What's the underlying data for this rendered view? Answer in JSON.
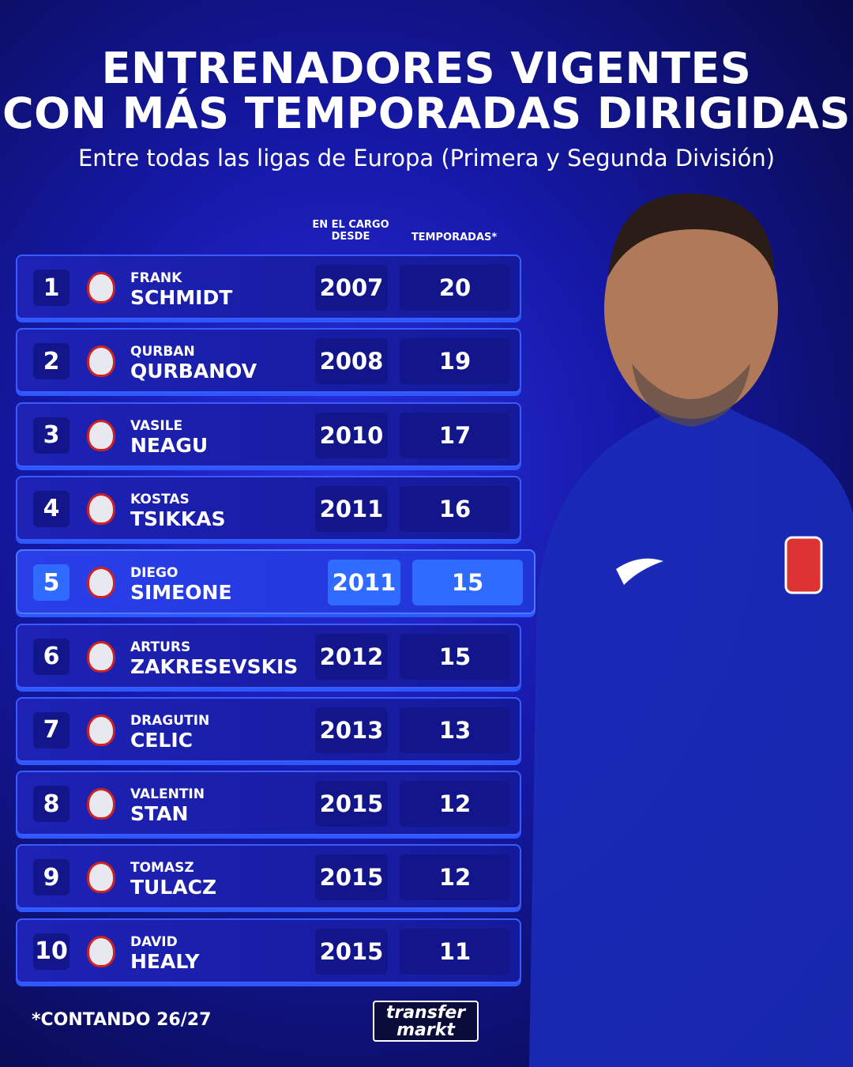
{
  "header": {
    "title_line1": "ENTRENADORES VIGENTES",
    "title_line2": "CON MÁS TEMPORADAS DIRIGIDAS",
    "subtitle": "Entre todas las ligas de Europa (Primera y Segunda División)"
  },
  "table": {
    "columns": {
      "since": "EN EL CARGO DESDE",
      "seasons": "TEMPORADAS*"
    },
    "rows": [
      {
        "rank": 1,
        "first_name": "FRANK",
        "last_name": "SCHMIDT",
        "since": 2007,
        "seasons": 20
      },
      {
        "rank": 2,
        "first_name": "QURBAN",
        "last_name": "QURBANOV",
        "since": 2008,
        "seasons": 19
      },
      {
        "rank": 3,
        "first_name": "VASILE",
        "last_name": "NEAGU",
        "since": 2010,
        "seasons": 17
      },
      {
        "rank": 4,
        "first_name": "KOSTAS",
        "last_name": "TSIKKAS",
        "since": 2011,
        "seasons": 16
      },
      {
        "rank": 5,
        "first_name": "DIEGO",
        "last_name": "SIMEONE",
        "since": 2011,
        "seasons": 15,
        "highlighted": true
      },
      {
        "rank": 6,
        "first_name": "ARTURS",
        "last_name": "ZAKRESEVSKIS",
        "since": 2012,
        "seasons": 15
      },
      {
        "rank": 7,
        "first_name": "DRAGUTIN",
        "last_name": "CELIC",
        "since": 2013,
        "seasons": 13
      },
      {
        "rank": 8,
        "first_name": "VALENTIN",
        "last_name": "STAN",
        "since": 2015,
        "seasons": 12
      },
      {
        "rank": 9,
        "first_name": "TOMASZ",
        "last_name": "TULACZ",
        "since": 2015,
        "seasons": 12
      },
      {
        "rank": 10,
        "first_name": "DAVID",
        "last_name": "HEALY",
        "since": 2015,
        "seasons": 11
      }
    ]
  },
  "footnote": "*CONTANDO 26/27",
  "logo": {
    "line1": "transfer",
    "line2": "markt"
  }
}
